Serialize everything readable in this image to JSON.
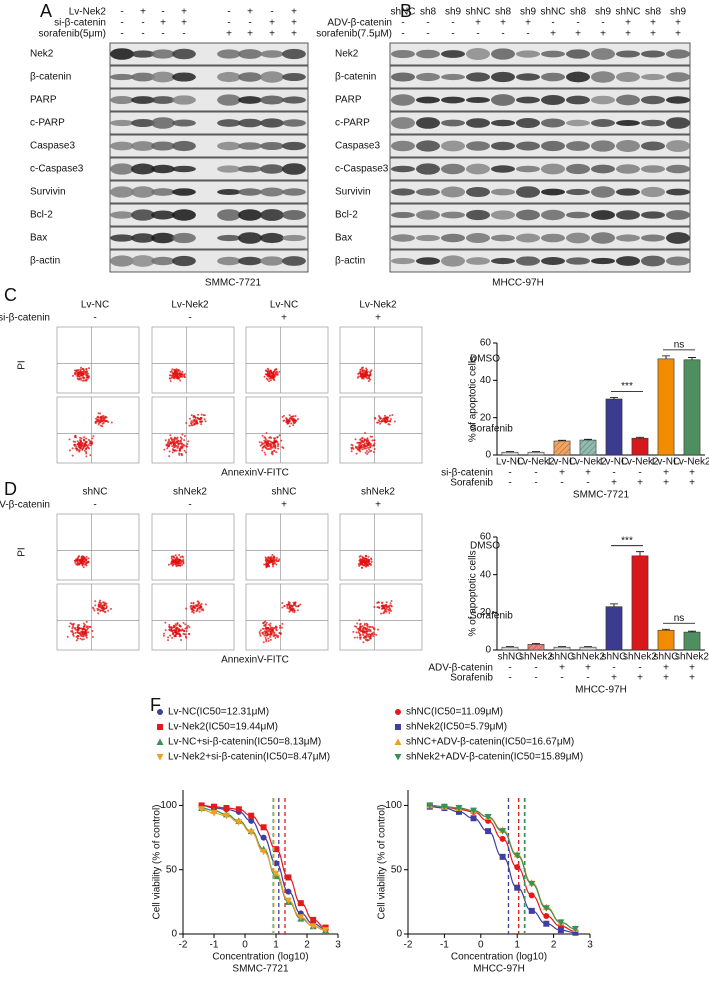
{
  "panel_a": {
    "label": "A",
    "conditions": [
      {
        "name": "Lv-Nek2",
        "signs": [
          "-",
          "+",
          "-",
          "+",
          "-",
          "+",
          "-",
          "+"
        ]
      },
      {
        "name": "si-β-catenin",
        "signs": [
          "-",
          "-",
          "+",
          "+",
          "-",
          "-",
          "+",
          "+"
        ]
      },
      {
        "name": "sorafenib(5μm)",
        "signs": [
          "-",
          "-",
          "-",
          "-",
          "+",
          "+",
          "+",
          "+"
        ]
      }
    ],
    "blots": [
      "Nek2",
      "β-catenin",
      "PARP",
      "c-PARP",
      "Caspase3",
      "c-Caspase3",
      "Survivin",
      "Bcl-2",
      "Bax",
      "β-actin"
    ],
    "cell_line": "SMMC-7721"
  },
  "panel_b": {
    "label": "B",
    "header": [
      "shNC",
      "sh8",
      "sh9",
      "shNC",
      "sh8",
      "sh9",
      "shNC",
      "sh8",
      "sh9",
      "shNC",
      "sh8",
      "sh9"
    ],
    "conditions": [
      {
        "name": "ADV-β-catenin",
        "signs": [
          "-",
          "-",
          "-",
          "+",
          "+",
          "+",
          "-",
          "-",
          "-",
          "+",
          "+",
          "+"
        ]
      },
      {
        "name": "sorafenib(7.5μM)",
        "signs": [
          "-",
          "-",
          "-",
          "-",
          "-",
          "-",
          "+",
          "+",
          "+",
          "+",
          "+",
          "+"
        ]
      }
    ],
    "blots": [
      "Nek2",
      "β-catenin",
      "PARP",
      "c-PARP",
      "Caspase3",
      "c-Caspase3",
      "Survivin",
      "Bcl-2",
      "Bax",
      "β-actin"
    ],
    "cell_line": "MHCC-97H"
  },
  "panel_c": {
    "label": "C",
    "columns": [
      "Lv-NC",
      "Lv-Nek2",
      "Lv-NC",
      "Lv-Nek2"
    ],
    "condition": {
      "name": "si-β-catenin",
      "signs": [
        "-",
        "-",
        "+",
        "+"
      ]
    },
    "y_label": "PI",
    "x_label": "AnnexinV-FITC",
    "rows": [
      "DMSO",
      "Sorafenib"
    ]
  },
  "panel_d": {
    "label": "D",
    "columns": [
      "shNC",
      "shNek2",
      "shNC",
      "shNek2"
    ],
    "condition": {
      "name": "ADV-β-catenin",
      "signs": [
        "-",
        "-",
        "+",
        "+"
      ]
    },
    "y_label": "PI",
    "x_label": "AnnexinV-FITC",
    "rows": [
      "DMSO",
      "Sorafenib"
    ]
  },
  "panel_f": {
    "label": "F"
  },
  "chart_data": [
    {
      "type": "bar",
      "y_label": "% of apoptotic cells",
      "categories": [
        "Lv-NC",
        "Lv-Nek2",
        "Lv-NC",
        "Lv-Nek2",
        "Lv-NC",
        "Lv-Nek2",
        "Lv-NC",
        "Lv-Nek2"
      ],
      "values": [
        1.5,
        1.5,
        7.5,
        8,
        30,
        9,
        51.5,
        51
      ],
      "errors": [
        0.3,
        0.3,
        0.4,
        0.4,
        0.8,
        0.5,
        1.6,
        1.2
      ],
      "colors": [
        "#d9d9d9",
        "#d9d9d9",
        "#f4a460",
        "#8fbcaf",
        "#3b3b8f",
        "#d7191c",
        "#f28c00",
        "#4f8f5f"
      ],
      "hatched": [
        false,
        false,
        true,
        true,
        false,
        false,
        false,
        false
      ],
      "ylim": [
        0,
        60
      ],
      "yticks": [
        0,
        20,
        40,
        60
      ],
      "annotations": [
        "***",
        "ns"
      ],
      "conditions": [
        {
          "name": "si-β-catenin",
          "signs": [
            "-",
            "-",
            "+",
            "+",
            "-",
            "-",
            "+",
            "+"
          ]
        },
        {
          "name": "Sorafenib",
          "signs": [
            "-",
            "-",
            "-",
            "-",
            "+",
            "+",
            "+",
            "+"
          ]
        }
      ],
      "cell_line": "SMMC-7721"
    },
    {
      "type": "bar",
      "y_label": "% of apoptotic cells",
      "categories": [
        "shNC",
        "shNek2",
        "shNC",
        "shNek2",
        "shNC",
        "shNek2",
        "shNC",
        "shNek2"
      ],
      "values": [
        1.5,
        3,
        1.5,
        1.5,
        23,
        50,
        10.5,
        9.5
      ],
      "errors": [
        0.3,
        0.5,
        0.3,
        0.3,
        1.5,
        2.2,
        0.5,
        0.5
      ],
      "colors": [
        "#d9d9d9",
        "#f08080",
        "#d9d9d9",
        "#d9d9d9",
        "#3b3b8f",
        "#d7191c",
        "#f28c00",
        "#4f8f5f"
      ],
      "hatched": [
        false,
        true,
        false,
        false,
        false,
        false,
        false,
        false
      ],
      "ylim": [
        0,
        60
      ],
      "yticks": [
        0,
        20,
        40,
        60
      ],
      "annotations": [
        "***",
        "ns"
      ],
      "conditions": [
        {
          "name": "ADV-β-catenin",
          "signs": [
            "-",
            "-",
            "+",
            "+",
            "-",
            "-",
            "+",
            "+"
          ]
        },
        {
          "name": "Sorafenib",
          "signs": [
            "-",
            "-",
            "-",
            "-",
            "+",
            "+",
            "+",
            "+"
          ]
        }
      ],
      "cell_line": "MHCC-97H"
    },
    {
      "type": "line",
      "y_label": "Cell viability (% of control)",
      "x_label": "Concentration (log10)",
      "cell_line": "SMMC-7721",
      "xlim": [
        -2,
        3
      ],
      "xticks": [
        -2,
        -1,
        0,
        1,
        2,
        3
      ],
      "ylim": [
        0,
        112
      ],
      "yticks": [
        0,
        50,
        100
      ],
      "x": [
        -1.4,
        -1,
        -0.6,
        -0.2,
        0.2,
        0.6,
        1,
        1.4,
        1.8,
        2.2,
        2.6
      ],
      "series": [
        {
          "name": "Lv-NC(IC50=12.31μM)",
          "color": "#3f3f9f",
          "marker": "circle",
          "ic50_log": 1.09,
          "values": [
            100,
            98,
            97,
            95,
            88,
            75,
            55,
            33,
            16,
            8,
            4
          ]
        },
        {
          "name": "Lv-Nek2(IC50=19.44μM)",
          "color": "#e31a1c",
          "marker": "square",
          "ic50_log": 1.29,
          "values": [
            100,
            99,
            98,
            97,
            92,
            83,
            66,
            44,
            24,
            11,
            5
          ]
        },
        {
          "name": "Lv-NC+si-β-catenin(IC50=8.13μM)",
          "color": "#3a8f5a",
          "marker": "triangle",
          "ic50_log": 0.91,
          "values": [
            98,
            96,
            93,
            88,
            80,
            66,
            45,
            25,
            12,
            6,
            3
          ]
        },
        {
          "name": "Lv-Nek2+si-β-catenin(IC50=8.47μM)",
          "color": "#f0a020",
          "marker": "down",
          "ic50_log": 0.93,
          "values": [
            97,
            94,
            92,
            87,
            79,
            64,
            47,
            26,
            13,
            6,
            3
          ]
        }
      ]
    },
    {
      "type": "line",
      "y_label": "Cell viability (% of control)",
      "x_label": "Concentration (log10)",
      "cell_line": "MHCC-97H",
      "xlim": [
        -2,
        3
      ],
      "xticks": [
        -2,
        -1,
        0,
        1,
        2,
        3
      ],
      "ylim": [
        0,
        112
      ],
      "yticks": [
        0,
        50,
        100
      ],
      "x": [
        -1.4,
        -1,
        -0.6,
        -0.2,
        0.2,
        0.6,
        1,
        1.4,
        1.8,
        2.2,
        2.6
      ],
      "series": [
        {
          "name": "shNC(IC50=11.09μM)",
          "color": "#e31a1c",
          "marker": "circle",
          "ic50_log": 1.04,
          "values": [
            100,
            99,
            97,
            95,
            88,
            74,
            52,
            30,
            14,
            6,
            2
          ]
        },
        {
          "name": "shNek2(IC50=5.79μM)",
          "color": "#3f3f9f",
          "marker": "square",
          "ic50_log": 0.76,
          "values": [
            99,
            98,
            95,
            90,
            80,
            60,
            36,
            18,
            8,
            3,
            1
          ]
        },
        {
          "name": "shNC+ADV-β-catenin(IC50=16.67μM)",
          "color": "#f0a020",
          "marker": "triangle",
          "ic50_log": 1.22,
          "values": [
            100,
            99,
            98,
            96,
            91,
            81,
            62,
            40,
            21,
            9,
            4
          ]
        },
        {
          "name": "shNek2+ADV-β-catenin(IC50=15.89μM)",
          "color": "#3a8f5a",
          "marker": "down",
          "ic50_log": 1.2,
          "values": [
            100,
            99,
            98,
            96,
            91,
            80,
            61,
            39,
            20,
            9,
            4
          ]
        }
      ]
    }
  ]
}
